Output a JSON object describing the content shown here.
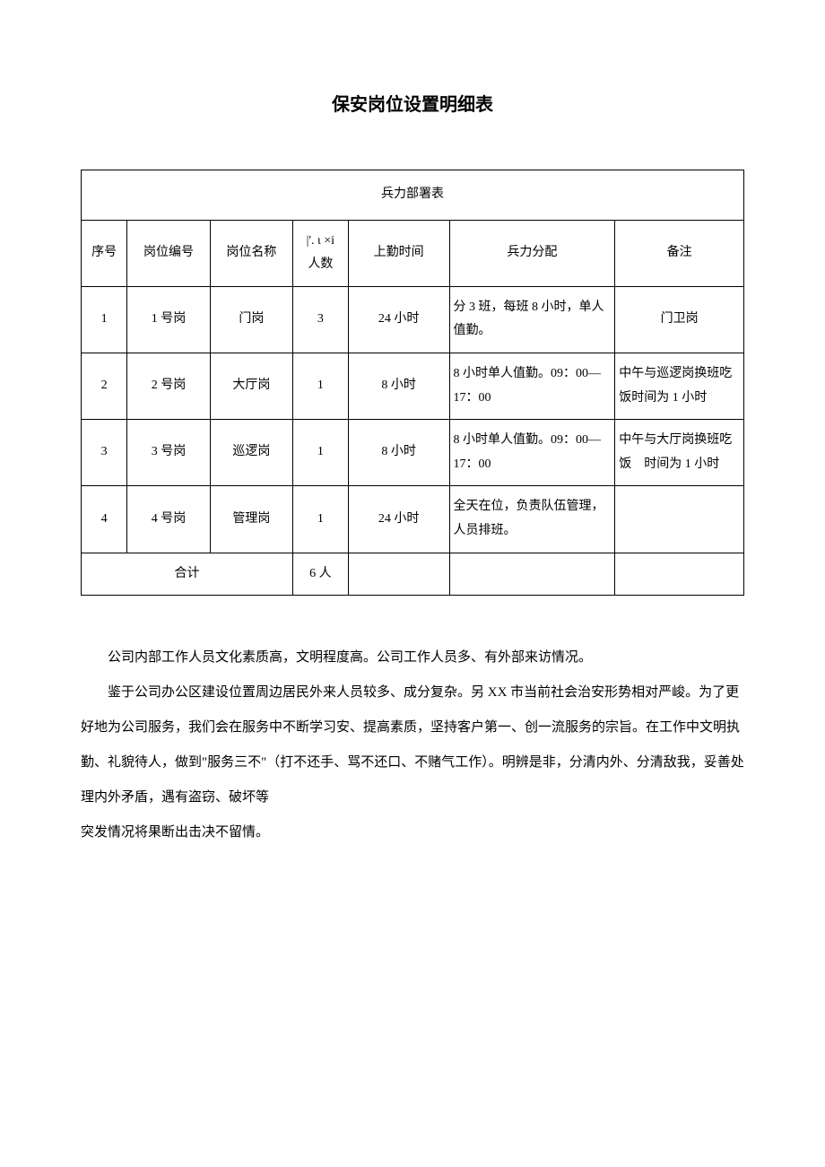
{
  "title": "保安岗位设置明细表",
  "table": {
    "caption": "兵力部署表",
    "headers": {
      "seq": "序号",
      "code": "岗位编号",
      "name": "岗位名称",
      "num": "|'. ι ×i 人数",
      "time": "上勤时间",
      "distribution": "兵力分配",
      "note": "备注"
    },
    "rows": [
      {
        "seq": "1",
        "code": "1 号岗",
        "name": "门岗",
        "num": "3",
        "time": "24 小时",
        "distribution": "分 3 班，每班 8 小时，单人值勤。",
        "note": "门卫岗"
      },
      {
        "seq": "2",
        "code": "2 号岗",
        "name": "大厅岗",
        "num": "1",
        "time": "8 小时",
        "distribution": "8 小时单人值勤。09：00—17：00",
        "note": "中午与巡逻岗换班吃饭时间为 1 小时"
      },
      {
        "seq": "3",
        "code": "3 号岗",
        "name": "巡逻岗",
        "num": "1",
        "time": "8 小时",
        "distribution": "8 小时单人值勤。09：00—17：00",
        "note": "中午与大厅岗换班吃饭　时间为 1 小时"
      },
      {
        "seq": "4",
        "code": "4 号岗",
        "name": "管理岗",
        "num": "1",
        "time": "24 小时",
        "distribution": "全天在位，负责队伍管理，人员排班。",
        "note": ""
      }
    ],
    "total_label": "合计",
    "total_num": "6 人"
  },
  "body_text": {
    "p1": "公司内部工作人员文化素质高，文明程度高。公司工作人员多、有外部来访情况。",
    "p2": "鉴于公司办公区建设位置周边居民外来人员较多、成分复杂。另 XX 市当前社会治安形势相对严峻。为了更好地为公司服务，我们会在服务中不断学习安、提高素质，坚持客户第一、创一流服务的宗旨。在工作中文明执勤、礼貌待人，做到\"服务三不\"（打不还手、骂不还口、不赌气工作）。明辨是非，分清内外、分清敌我，妥善处理内外矛盾，遇有盗窃、破坏等",
    "p3": "突发情况将果断出击决不留情。"
  }
}
